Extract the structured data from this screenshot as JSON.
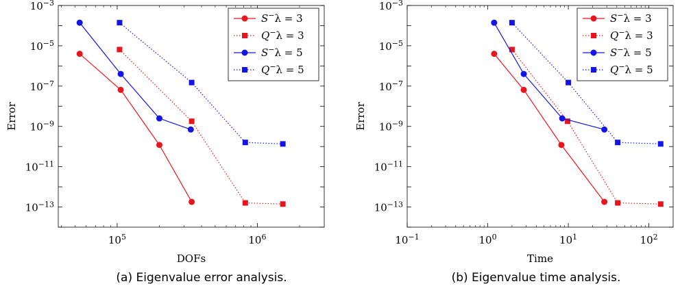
{
  "chart_data": [
    {
      "type": "line",
      "caption": "(a) Eigenvalue error analysis.",
      "xlabel": "DOFs",
      "ylabel": "Error",
      "xscale": "log",
      "yscale": "log",
      "xlim": [
        38000,
        3000000
      ],
      "ylim": [
        1e-14,
        0.001
      ],
      "x_ticks": [
        100000,
        1000000
      ],
      "x_tick_labels": [
        {
          "base": "10",
          "exp": "5"
        },
        {
          "base": "10",
          "exp": "6"
        }
      ],
      "y_ticks": [
        1e-13,
        1e-11,
        1e-09,
        1e-07,
        1e-05,
        0.001
      ],
      "y_tick_labels": [
        {
          "base": "10",
          "exp": "−13"
        },
        {
          "base": "10",
          "exp": "−11"
        },
        {
          "base": "10",
          "exp": "−9"
        },
        {
          "base": "10",
          "exp": "−7"
        },
        {
          "base": "10",
          "exp": "−5"
        },
        {
          "base": "10",
          "exp": "−3"
        }
      ],
      "legend_position": "top-right",
      "grid": false,
      "series": [
        {
          "name": "S⁻λ = 3",
          "legend": {
            "letter": "S",
            "rest": "λ = 3"
          },
          "color": "#e8161c",
          "style": "solid",
          "marker": "circle",
          "x": [
            54000,
            106000,
            200000,
            340000
          ],
          "y": [
            4e-06,
            6.5e-08,
            1.2e-10,
            1.8e-13
          ]
        },
        {
          "name": "Q⁻λ = 3",
          "legend": {
            "letter": "Q",
            "rest": "λ = 3"
          },
          "color": "#e8161c",
          "style": "dotted",
          "marker": "square",
          "x": [
            104000,
            340000,
            820000,
            1520000
          ],
          "y": [
            6.5e-06,
            1.8e-09,
            1.6e-13,
            1.4e-13
          ]
        },
        {
          "name": "S⁻λ = 5",
          "legend": {
            "letter": "S",
            "rest": "λ = 5"
          },
          "color": "#1414e6",
          "style": "solid",
          "marker": "circle",
          "x": [
            54000,
            106000,
            200000,
            335000
          ],
          "y": [
            0.00014,
            4e-07,
            2.5e-09,
            7e-10
          ]
        },
        {
          "name": "Q⁻λ = 5",
          "legend": {
            "letter": "Q",
            "rest": "λ = 5"
          },
          "color": "#1414e6",
          "style": "dotted",
          "marker": "square",
          "x": [
            104000,
            340000,
            820000,
            1520000
          ],
          "y": [
            0.00014,
            1.5e-07,
            1.6e-10,
            1.35e-10
          ]
        }
      ]
    },
    {
      "type": "line",
      "caption": "(b) Eigenvalue time analysis.",
      "xlabel": "Time",
      "ylabel": "Error",
      "xscale": "log",
      "yscale": "log",
      "xlim": [
        0.1,
        200
      ],
      "ylim": [
        1e-14,
        0.001
      ],
      "x_ticks": [
        0.1,
        1,
        10,
        100
      ],
      "x_tick_labels": [
        {
          "base": "10",
          "exp": "−1"
        },
        {
          "base": "10",
          "exp": "0"
        },
        {
          "base": "10",
          "exp": "1"
        },
        {
          "base": "10",
          "exp": "2"
        }
      ],
      "y_ticks": [
        1e-13,
        1e-11,
        1e-09,
        1e-07,
        1e-05,
        0.001
      ],
      "y_tick_labels": [
        {
          "base": "10",
          "exp": "−13"
        },
        {
          "base": "10",
          "exp": "−11"
        },
        {
          "base": "10",
          "exp": "−9"
        },
        {
          "base": "10",
          "exp": "−7"
        },
        {
          "base": "10",
          "exp": "−5"
        },
        {
          "base": "10",
          "exp": "−3"
        }
      ],
      "legend_position": "top-right",
      "grid": false,
      "series": [
        {
          "name": "S⁻λ = 3",
          "legend": {
            "letter": "S",
            "rest": "λ = 3"
          },
          "color": "#e8161c",
          "style": "solid",
          "marker": "circle",
          "x": [
            1.2,
            2.8,
            8.2,
            28
          ],
          "y": [
            4e-06,
            6.5e-08,
            1.2e-10,
            1.8e-13
          ]
        },
        {
          "name": "Q⁻λ = 3",
          "legend": {
            "letter": "Q",
            "rest": "λ = 3"
          },
          "color": "#e8161c",
          "style": "dotted",
          "marker": "square",
          "x": [
            2.0,
            9.8,
            41,
            140
          ],
          "y": [
            6.5e-06,
            1.8e-09,
            1.6e-13,
            1.4e-13
          ]
        },
        {
          "name": "S⁻λ = 5",
          "legend": {
            "letter": "S",
            "rest": "λ = 5"
          },
          "color": "#1414e6",
          "style": "solid",
          "marker": "circle",
          "x": [
            1.2,
            2.8,
            8.4,
            28
          ],
          "y": [
            0.00014,
            4e-07,
            2.5e-09,
            7e-10
          ]
        },
        {
          "name": "Q⁻λ = 5",
          "legend": {
            "letter": "Q",
            "rest": "λ = 5"
          },
          "color": "#1414e6",
          "style": "dotted",
          "marker": "square",
          "x": [
            2.0,
            10,
            41,
            140
          ],
          "y": [
            0.00014,
            1.5e-07,
            1.6e-10,
            1.35e-10
          ]
        }
      ]
    }
  ]
}
